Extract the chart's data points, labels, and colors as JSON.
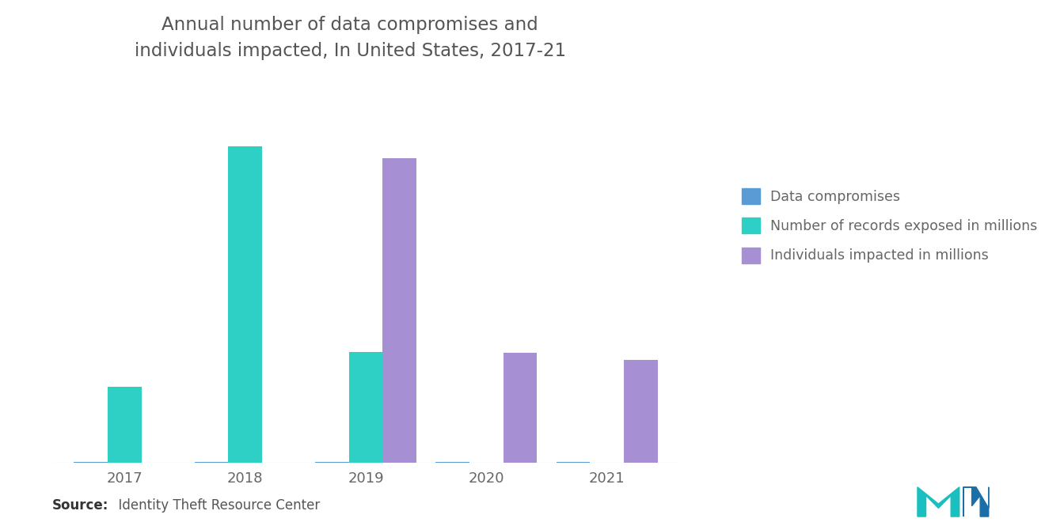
{
  "title_line1": "Annual number of data compromises and",
  "title_line2": "individuals impacted, In United States, 2017-21",
  "years": [
    "2017",
    "2018",
    "2019",
    "2020",
    "2021"
  ],
  "data_compromises": [
    1.5,
    1.5,
    1.5,
    1.5,
    1.5
  ],
  "records_exposed": [
    107,
    447,
    157,
    0,
    0
  ],
  "individuals_impacted": [
    0,
    0,
    430,
    155,
    145
  ],
  "color_compromises": "#5B9BD5",
  "color_records": "#2ECFC4",
  "color_individuals": "#A78FD4",
  "legend_labels": [
    "Data compromises",
    "Number of records exposed in millions",
    "Individuals impacted in millions"
  ],
  "source_bold": "Source:",
  "source_rest": "  Identity Theft Resource Center",
  "bar_width": 0.28,
  "ylim_max": 520,
  "background_color": "#FFFFFF",
  "title_color": "#555555",
  "tick_color": "#666666",
  "title_fontsize": 16.5,
  "legend_fontsize": 12.5,
  "tick_fontsize": 13,
  "source_fontsize": 12
}
